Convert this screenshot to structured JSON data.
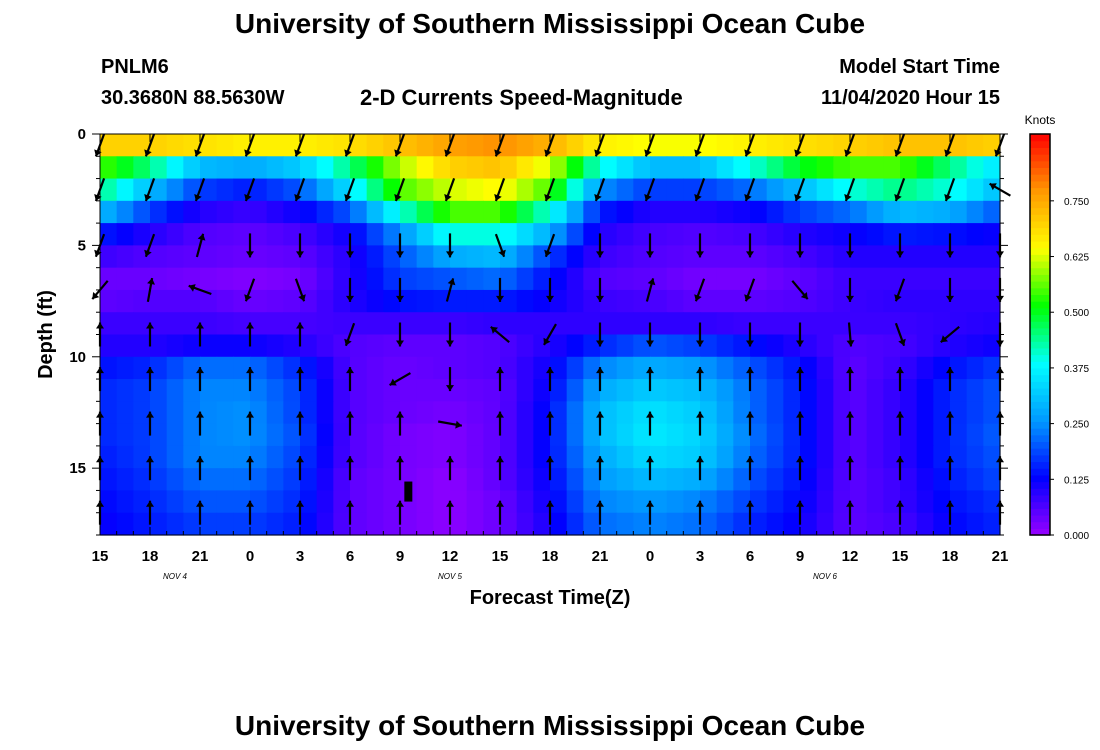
{
  "page": {
    "title_top": "University of Southern Mississippi Ocean Cube",
    "title_bottom": "University of Southern Mississippi Ocean Cube",
    "station_id": "PNLM6",
    "station_coords": "30.3680N 88.5630W",
    "plot_title": "2-D Currents Speed-Magnitude",
    "model_start_label": "Model Start Time",
    "model_start_value": "11/04/2020 Hour 15"
  },
  "colors": {
    "scale": [
      "#9900ff",
      "#0000ff",
      "#0099ff",
      "#00ffff",
      "#00ff00",
      "#ffff00",
      "#ff9900",
      "#ff0000"
    ],
    "arrow": "#000000",
    "marker": "#000000"
  },
  "chart_data": {
    "type": "heatmap",
    "title": "2-D Currents Speed-Magnitude",
    "xlabel": "Forecast Time(Z)",
    "ylabel": "Depth (ft)",
    "units": "Knots",
    "x_range_hours": [
      0,
      54
    ],
    "x_ticks": [
      {
        "h": 0,
        "label": "15"
      },
      {
        "h": 3,
        "label": "18"
      },
      {
        "h": 6,
        "label": "21"
      },
      {
        "h": 9,
        "label": "0"
      },
      {
        "h": 12,
        "label": "3"
      },
      {
        "h": 15,
        "label": "6"
      },
      {
        "h": 18,
        "label": "9"
      },
      {
        "h": 21,
        "label": "12"
      },
      {
        "h": 24,
        "label": "15"
      },
      {
        "h": 27,
        "label": "18"
      },
      {
        "h": 30,
        "label": "21"
      },
      {
        "h": 33,
        "label": "0"
      },
      {
        "h": 36,
        "label": "3"
      },
      {
        "h": 39,
        "label": "6"
      },
      {
        "h": 42,
        "label": "9"
      },
      {
        "h": 45,
        "label": "12"
      },
      {
        "h": 48,
        "label": "15"
      },
      {
        "h": 51,
        "label": "18"
      },
      {
        "h": 54,
        "label": "21"
      }
    ],
    "date_labels": [
      {
        "h": 4.5,
        "label": "NOV 4"
      },
      {
        "h": 21,
        "label": "NOV 5"
      },
      {
        "h": 43.5,
        "label": "NOV 6"
      }
    ],
    "y_range_ft": [
      0,
      18
    ],
    "y_ticks": [
      0,
      5,
      10,
      15
    ],
    "colorbar": {
      "label": "Knots",
      "range": [
        0,
        0.9
      ],
      "ticks": [
        {
          "v": 0.0,
          "label": "0.000"
        },
        {
          "v": 0.125,
          "label": "0.125"
        },
        {
          "v": 0.25,
          "label": "0.250"
        },
        {
          "v": 0.375,
          "label": "0.375"
        },
        {
          "v": 0.5,
          "label": "0.500"
        },
        {
          "v": 0.625,
          "label": "0.625"
        },
        {
          "v": 0.75,
          "label": "0.750"
        }
      ]
    },
    "depth_levels_ft": [
      0.5,
      1.5,
      2.5,
      3.5,
      4.5,
      5.5,
      6.5,
      7.5,
      8.5,
      9.5,
      10.5,
      11.5,
      12.5,
      13.5,
      14.5,
      15.5,
      16.5,
      17.5
    ],
    "time_columns_h": [
      0,
      3,
      6,
      9,
      12,
      15,
      18,
      21,
      24,
      27,
      30,
      33,
      36,
      39,
      42,
      45,
      48,
      51,
      54
    ],
    "speed_knots": [
      [
        0.7,
        0.7,
        0.68,
        0.66,
        0.66,
        0.68,
        0.72,
        0.76,
        0.78,
        0.74,
        0.66,
        0.64,
        0.64,
        0.66,
        0.68,
        0.7,
        0.72,
        0.72,
        0.7
      ],
      [
        0.55,
        0.45,
        0.3,
        0.28,
        0.32,
        0.45,
        0.6,
        0.7,
        0.72,
        0.62,
        0.4,
        0.3,
        0.3,
        0.4,
        0.5,
        0.55,
        0.55,
        0.45,
        0.35
      ],
      [
        0.45,
        0.3,
        0.18,
        0.15,
        0.2,
        0.35,
        0.55,
        0.62,
        0.65,
        0.55,
        0.25,
        0.18,
        0.18,
        0.22,
        0.3,
        0.4,
        0.45,
        0.4,
        0.3
      ],
      [
        0.3,
        0.18,
        0.1,
        0.08,
        0.12,
        0.2,
        0.4,
        0.55,
        0.55,
        0.4,
        0.15,
        0.1,
        0.1,
        0.12,
        0.18,
        0.22,
        0.3,
        0.28,
        0.2
      ],
      [
        0.15,
        0.1,
        0.06,
        0.05,
        0.07,
        0.12,
        0.25,
        0.4,
        0.4,
        0.28,
        0.1,
        0.07,
        0.06,
        0.07,
        0.1,
        0.12,
        0.15,
        0.14,
        0.12
      ],
      [
        0.08,
        0.06,
        0.05,
        0.04,
        0.05,
        0.1,
        0.2,
        0.28,
        0.3,
        0.18,
        0.08,
        0.06,
        0.05,
        0.05,
        0.07,
        0.1,
        0.1,
        0.1,
        0.1
      ],
      [
        0.04,
        0.04,
        0.03,
        0.02,
        0.03,
        0.1,
        0.18,
        0.2,
        0.22,
        0.14,
        0.06,
        0.05,
        0.03,
        0.03,
        0.05,
        0.08,
        0.08,
        0.08,
        0.08
      ],
      [
        0.05,
        0.06,
        0.06,
        0.04,
        0.05,
        0.1,
        0.14,
        0.15,
        0.15,
        0.12,
        0.08,
        0.07,
        0.05,
        0.05,
        0.06,
        0.08,
        0.09,
        0.09,
        0.09
      ],
      [
        0.08,
        0.08,
        0.08,
        0.07,
        0.07,
        0.08,
        0.08,
        0.08,
        0.09,
        0.09,
        0.09,
        0.09,
        0.09,
        0.08,
        0.08,
        0.08,
        0.08,
        0.09,
        0.1
      ],
      [
        0.1,
        0.1,
        0.12,
        0.12,
        0.1,
        0.06,
        0.05,
        0.05,
        0.06,
        0.1,
        0.16,
        0.2,
        0.18,
        0.14,
        0.1,
        0.06,
        0.07,
        0.1,
        0.12
      ],
      [
        0.14,
        0.16,
        0.22,
        0.22,
        0.16,
        0.06,
        0.04,
        0.05,
        0.06,
        0.12,
        0.24,
        0.28,
        0.26,
        0.2,
        0.14,
        0.05,
        0.08,
        0.14,
        0.18
      ],
      [
        0.16,
        0.18,
        0.24,
        0.24,
        0.18,
        0.06,
        0.04,
        0.04,
        0.05,
        0.13,
        0.28,
        0.32,
        0.3,
        0.22,
        0.15,
        0.05,
        0.09,
        0.16,
        0.2
      ],
      [
        0.16,
        0.18,
        0.24,
        0.25,
        0.18,
        0.06,
        0.04,
        0.03,
        0.05,
        0.14,
        0.3,
        0.35,
        0.32,
        0.22,
        0.15,
        0.05,
        0.09,
        0.16,
        0.2
      ],
      [
        0.16,
        0.18,
        0.24,
        0.25,
        0.19,
        0.06,
        0.03,
        0.02,
        0.05,
        0.14,
        0.3,
        0.36,
        0.33,
        0.23,
        0.15,
        0.05,
        0.09,
        0.16,
        0.21
      ],
      [
        0.15,
        0.18,
        0.24,
        0.24,
        0.18,
        0.06,
        0.03,
        0.02,
        0.05,
        0.14,
        0.28,
        0.34,
        0.32,
        0.22,
        0.15,
        0.05,
        0.09,
        0.16,
        0.2
      ],
      [
        0.14,
        0.17,
        0.22,
        0.22,
        0.17,
        0.05,
        0.03,
        0.01,
        0.05,
        0.13,
        0.26,
        0.3,
        0.28,
        0.2,
        0.14,
        0.05,
        0.08,
        0.15,
        0.19
      ],
      [
        0.13,
        0.16,
        0.2,
        0.2,
        0.16,
        0.05,
        0.03,
        0.01,
        0.04,
        0.12,
        0.24,
        0.26,
        0.24,
        0.18,
        0.13,
        0.05,
        0.08,
        0.14,
        0.17
      ],
      [
        0.12,
        0.15,
        0.18,
        0.18,
        0.15,
        0.05,
        0.03,
        0.01,
        0.04,
        0.11,
        0.22,
        0.24,
        0.22,
        0.16,
        0.12,
        0.05,
        0.07,
        0.13,
        0.16
      ]
    ],
    "vector_depths_ft": [
      0.5,
      2.5,
      5,
      7,
      9,
      11,
      13,
      15,
      17
    ],
    "vector_direction_deg": [
      [
        200,
        200,
        200,
        200,
        200,
        200,
        200,
        200,
        200,
        200,
        200,
        200,
        200,
        200,
        200,
        200,
        200,
        200,
        200
      ],
      [
        200,
        200,
        200,
        200,
        200,
        200,
        200,
        200,
        200,
        200,
        200,
        200,
        200,
        200,
        200,
        200,
        200,
        200,
        300
      ],
      [
        200,
        200,
        15,
        180,
        180,
        180,
        180,
        180,
        160,
        200,
        180,
        180,
        180,
        180,
        180,
        180,
        180,
        180,
        180
      ],
      [
        220,
        10,
        290,
        200,
        160,
        180,
        180,
        15,
        180,
        180,
        180,
        15,
        200,
        200,
        140,
        180,
        200,
        180,
        180
      ],
      [
        0,
        0,
        0,
        0,
        0,
        200,
        180,
        180,
        310,
        210,
        180,
        180,
        180,
        180,
        180,
        175,
        160,
        230,
        180
      ],
      [
        0,
        0,
        0,
        0,
        0,
        0,
        240,
        180,
        0,
        0,
        0,
        0,
        0,
        0,
        0,
        0,
        0,
        0,
        0
      ],
      [
        0,
        0,
        0,
        0,
        0,
        0,
        0,
        100,
        0,
        0,
        0,
        0,
        0,
        0,
        0,
        0,
        0,
        0,
        0
      ],
      [
        0,
        0,
        0,
        0,
        0,
        0,
        0,
        0,
        0,
        0,
        0,
        0,
        0,
        0,
        0,
        0,
        0,
        0,
        0
      ],
      [
        0,
        0,
        0,
        0,
        0,
        0,
        0,
        0,
        0,
        0,
        0,
        0,
        0,
        0,
        0,
        0,
        0,
        0,
        0
      ]
    ],
    "marker": {
      "h": 18.5,
      "depth_from_ft": 15.6,
      "depth_to_ft": 16.5
    }
  }
}
